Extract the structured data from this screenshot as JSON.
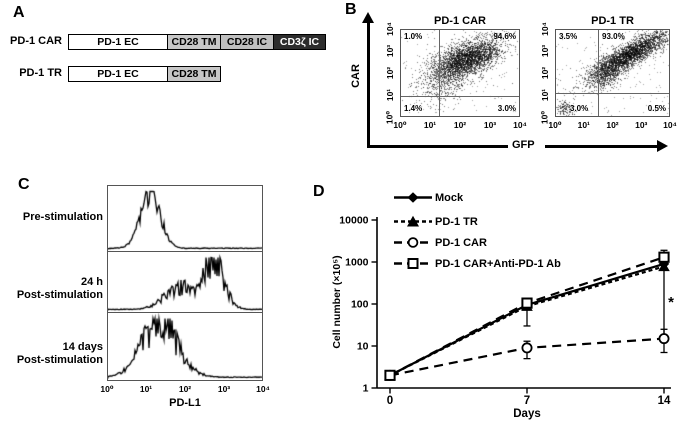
{
  "figure": {
    "panel_a": {
      "label": "A",
      "constructs": [
        {
          "name": "PD-1 CAR",
          "domains": [
            {
              "label": "PD-1 EC",
              "bg": "#ffffff",
              "fg": "#000000"
            },
            {
              "label": "CD28 TM",
              "bg": "#c7c7c7",
              "fg": "#000000"
            },
            {
              "label": "CD28 IC",
              "bg": "#bfbfbf",
              "fg": "#000000"
            },
            {
              "label": "CD3ζ IC",
              "bg": "#2d2d2d",
              "fg": "#ffffff"
            }
          ]
        },
        {
          "name": "PD-1 TR",
          "domains": [
            {
              "label": "PD-1 EC",
              "bg": "#ffffff",
              "fg": "#000000"
            },
            {
              "label": "CD28 TM",
              "bg": "#c7c7c7",
              "fg": "#000000"
            }
          ]
        }
      ]
    },
    "panel_b": {
      "label": "B"
    },
    "panel_c": {
      "label": "C"
    },
    "panel_d": {
      "label": "D"
    }
  },
  "chart_data": [
    {
      "id": "flow_pd1_car",
      "type": "scatter",
      "title": "PD-1 CAR",
      "xlabel": "GFP",
      "ylabel": "CAR",
      "xlim_log": [
        0,
        4
      ],
      "ylim_log": [
        0,
        4
      ],
      "x_tick_labels": [
        "10⁰",
        "10¹",
        "10²",
        "10³",
        "10⁴"
      ],
      "y_tick_labels": [
        "10⁰",
        "10¹",
        "10²",
        "10³",
        "10⁴"
      ],
      "gates": {
        "x_log": 1.3,
        "y_log": 0.95
      },
      "quadrants": {
        "upper_left": "1.0%",
        "upper_right": "94.6%",
        "lower_left": "1.4%",
        "lower_right": "3.0%"
      },
      "clusters": [
        {
          "cx": 2.3,
          "cy": 2.7,
          "sx": 0.55,
          "sy": 0.45,
          "corr": 0.5,
          "n": 2800
        },
        {
          "cx": 1.5,
          "cy": 1.8,
          "sx": 0.5,
          "sy": 0.6,
          "corr": 0.3,
          "n": 700
        }
      ],
      "sparse_n": 130,
      "seed": 7
    },
    {
      "id": "flow_pd1_tr",
      "type": "scatter",
      "title": "PD-1 TR",
      "xlabel": "GFP",
      "ylabel": "CAR",
      "xlim_log": [
        0,
        4
      ],
      "ylim_log": [
        0,
        4
      ],
      "x_tick_labels": [
        "10⁰",
        "10¹",
        "10²",
        "10³",
        "10⁴"
      ],
      "y_tick_labels": [
        "10⁰",
        "10¹",
        "10²",
        "10³",
        "10⁴"
      ],
      "gates": {
        "x_log": 1.5,
        "y_log": 1.05
      },
      "quadrants": {
        "upper_left": "3.5%",
        "upper_right": "93.0%",
        "lower_left": "3.0%",
        "lower_right": "0.5%"
      },
      "clusters": [
        {
          "cx": 2.6,
          "cy": 2.85,
          "sx": 0.7,
          "sy": 0.55,
          "corr": 0.85,
          "n": 3000
        },
        {
          "cx": 1.8,
          "cy": 1.8,
          "sx": 0.35,
          "sy": 0.3,
          "corr": 0.5,
          "n": 450
        },
        {
          "cx": 0.3,
          "cy": 0.35,
          "sx": 0.18,
          "sy": 0.2,
          "corr": 0,
          "n": 150
        }
      ],
      "sparse_n": 150,
      "seed": 11
    },
    {
      "id": "pdl1_histograms",
      "type": "area",
      "xlabel": "PD-L1",
      "xlim_log": [
        0,
        4
      ],
      "x_tick_labels": [
        "10⁰",
        "10¹",
        "10²",
        "10³",
        "10⁴"
      ],
      "rows": [
        {
          "label_lines": [
            "Pre-stimulation"
          ],
          "peaks": [
            {
              "center": 1.1,
              "sigma": 0.26,
              "height": 0.92
            }
          ],
          "noise": 0.22,
          "seed": 3
        },
        {
          "label_lines": [
            "24 h",
            "Post-stimulation"
          ],
          "peaks": [
            {
              "center": 1.85,
              "sigma": 0.38,
              "height": 0.42
            },
            {
              "center": 2.75,
              "sigma": 0.26,
              "height": 0.95
            }
          ],
          "noise": 0.4,
          "seed": 5
        },
        {
          "label_lines": [
            "14 days",
            "Post-stimulation"
          ],
          "peaks": [
            {
              "center": 1.35,
              "sigma": 0.46,
              "height": 0.9
            }
          ],
          "noise": 0.4,
          "seed": 9
        }
      ]
    },
    {
      "id": "t_cell_growth",
      "type": "line",
      "xlabel": "Days",
      "ylabel": "Cell number (×10⁵)",
      "x": [
        0,
        7,
        14
      ],
      "x_tick_labels": [
        "0",
        "7",
        "14"
      ],
      "y_scale": "log",
      "ylim": [
        1,
        10000
      ],
      "y_ticks": [
        1,
        10,
        100,
        1000,
        10000
      ],
      "y_tick_labels": [
        "1",
        "10",
        "100",
        "1000",
        "10000"
      ],
      "legend_position": "upper-left",
      "series": [
        {
          "name": "Mock",
          "marker": "diamond",
          "marker_fill": "filled",
          "line": "solid",
          "values": [
            2,
            95,
            900
          ]
        },
        {
          "name": "PD-1 TR",
          "marker": "triangle",
          "marker_fill": "filled",
          "line": "dash_short",
          "values": [
            2,
            88,
            780
          ]
        },
        {
          "name": "PD-1 CAR",
          "marker": "circle",
          "marker_fill": "open",
          "line": "dash_long",
          "values": [
            2,
            9,
            15
          ],
          "errors": [
            {
              "x": 7,
              "lo": 5,
              "hi": 13
            },
            {
              "x": 14,
              "lo": 7,
              "hi": 25
            }
          ]
        },
        {
          "name": "PD-1 CAR+Anti-PD-1 Ab",
          "marker": "square",
          "marker_fill": "open",
          "line": "dash_long",
          "values": [
            2,
            105,
            1300
          ],
          "errors": [
            {
              "x": 7,
              "lo": 30,
              "hi": 105
            },
            {
              "x": 14,
              "lo": 1300,
              "hi": 1900
            }
          ]
        }
      ],
      "significance": {
        "x": 14,
        "from": 850,
        "to": 16,
        "label": "*"
      }
    }
  ]
}
